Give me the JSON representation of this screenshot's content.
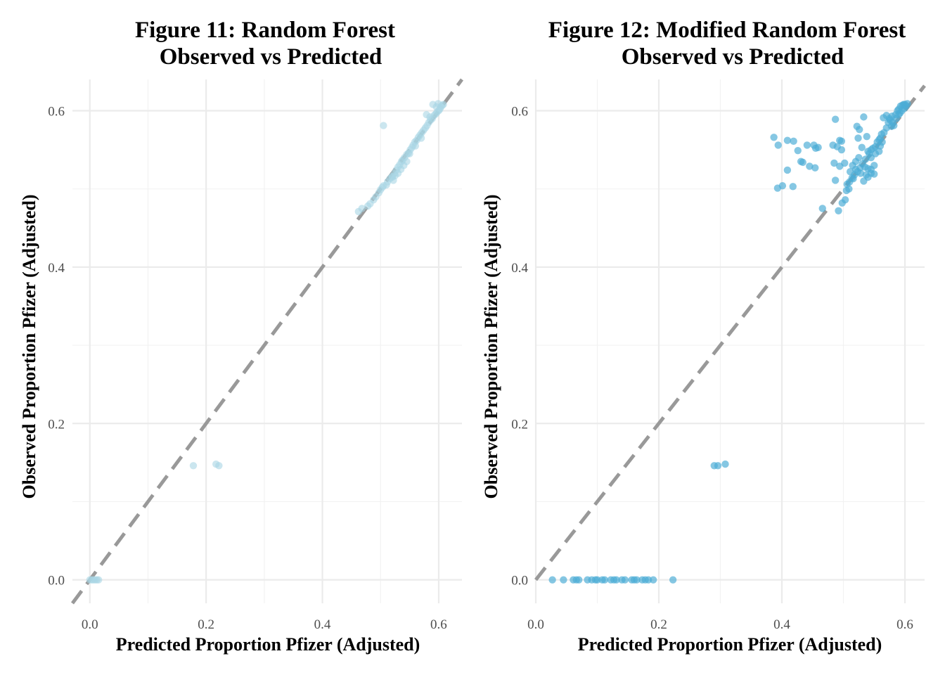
{
  "chart_data": [
    {
      "type": "scatter",
      "title": "Figure 11: Random Forest",
      "subtitle": "Observed vs Predicted",
      "xlabel": "Predicted Proportion Pfizer (Adjusted)",
      "ylabel": "Observed Proportion Pfizer (Adjusted)",
      "xlim": [
        -0.03,
        0.64
      ],
      "ylim": [
        -0.03,
        0.64
      ],
      "x_ticks": [
        "0.0",
        "0.2",
        "0.4",
        "0.6"
      ],
      "y_ticks": [
        "0.0",
        "0.2",
        "0.4",
        "0.6"
      ],
      "grid": true,
      "reference_line": "y = x (dashed)",
      "point_color": "#a9d6e5",
      "line_color": "#999999",
      "points": [
        [
          0.0,
          0.0
        ],
        [
          0.003,
          0.0
        ],
        [
          0.006,
          0.0
        ],
        [
          0.009,
          0.0
        ],
        [
          0.012,
          0.0
        ],
        [
          0.015,
          0.0
        ],
        [
          0.178,
          0.146
        ],
        [
          0.217,
          0.148
        ],
        [
          0.222,
          0.146
        ],
        [
          0.505,
          0.581
        ],
        [
          0.462,
          0.471
        ],
        [
          0.468,
          0.475
        ],
        [
          0.478,
          0.478
        ],
        [
          0.482,
          0.481
        ],
        [
          0.488,
          0.486
        ],
        [
          0.492,
          0.49
        ],
        [
          0.497,
          0.495
        ],
        [
          0.5,
          0.499
        ],
        [
          0.503,
          0.502
        ],
        [
          0.505,
          0.504
        ],
        [
          0.51,
          0.505
        ],
        [
          0.512,
          0.509
        ],
        [
          0.516,
          0.513
        ],
        [
          0.52,
          0.516
        ],
        [
          0.522,
          0.511
        ],
        [
          0.524,
          0.52
        ],
        [
          0.527,
          0.524
        ],
        [
          0.53,
          0.528
        ],
        [
          0.533,
          0.531
        ],
        [
          0.536,
          0.535
        ],
        [
          0.538,
          0.537
        ],
        [
          0.541,
          0.54
        ],
        [
          0.545,
          0.544
        ],
        [
          0.548,
          0.546
        ],
        [
          0.551,
          0.55
        ],
        [
          0.554,
          0.553
        ],
        [
          0.556,
          0.556
        ],
        [
          0.559,
          0.56
        ],
        [
          0.562,
          0.562
        ],
        [
          0.565,
          0.566
        ],
        [
          0.568,
          0.569
        ],
        [
          0.571,
          0.572
        ],
        [
          0.574,
          0.575
        ],
        [
          0.577,
          0.578
        ],
        [
          0.58,
          0.581
        ],
        [
          0.583,
          0.585
        ],
        [
          0.586,
          0.588
        ],
        [
          0.589,
          0.59
        ],
        [
          0.592,
          0.594
        ],
        [
          0.595,
          0.596
        ],
        [
          0.597,
          0.598
        ],
        [
          0.6,
          0.6
        ],
        [
          0.602,
          0.602
        ],
        [
          0.604,
          0.605
        ],
        [
          0.606,
          0.607
        ],
        [
          0.608,
          0.608
        ],
        [
          0.599,
          0.609
        ],
        [
          0.59,
          0.608
        ],
        [
          0.596,
          0.605
        ],
        [
          0.579,
          0.595
        ],
        [
          0.585,
          0.592
        ],
        [
          0.52,
          0.515
        ],
        [
          0.53,
          0.52
        ],
        [
          0.54,
          0.53
        ],
        [
          0.55,
          0.545
        ],
        [
          0.56,
          0.555
        ],
        [
          0.57,
          0.565
        ],
        [
          0.545,
          0.535
        ],
        [
          0.535,
          0.525
        ],
        [
          0.525,
          0.517
        ]
      ]
    },
    {
      "type": "scatter",
      "title": "Figure 12: Modified Random Forest",
      "subtitle": "Observed vs Predicted",
      "xlabel": "Predicted Proportion Pfizer (Adjusted)",
      "ylabel": "Observed Proportion Pfizer (Adjusted)",
      "xlim": [
        0.0,
        0.632
      ],
      "ylim": [
        -0.03,
        0.64
      ],
      "x_ticks": [
        "0.0",
        "0.2",
        "0.4",
        "0.6"
      ],
      "y_ticks": [
        "0.0",
        "0.2",
        "0.4",
        "0.6"
      ],
      "grid": true,
      "reference_line": "y = x (dashed)",
      "point_color": "#4badd6",
      "line_color": "#999999",
      "points": [
        [
          0.027,
          0.0
        ],
        [
          0.045,
          0.0
        ],
        [
          0.061,
          0.0
        ],
        [
          0.066,
          0.0
        ],
        [
          0.07,
          0.0
        ],
        [
          0.084,
          0.0
        ],
        [
          0.091,
          0.0
        ],
        [
          0.097,
          0.0
        ],
        [
          0.1,
          0.0
        ],
        [
          0.108,
          0.0
        ],
        [
          0.112,
          0.0
        ],
        [
          0.122,
          0.0
        ],
        [
          0.127,
          0.0
        ],
        [
          0.131,
          0.0
        ],
        [
          0.14,
          0.0
        ],
        [
          0.145,
          0.0
        ],
        [
          0.156,
          0.0
        ],
        [
          0.16,
          0.0
        ],
        [
          0.164,
          0.0
        ],
        [
          0.173,
          0.0
        ],
        [
          0.178,
          0.0
        ],
        [
          0.183,
          0.0
        ],
        [
          0.191,
          0.0
        ],
        [
          0.223,
          0.0
        ],
        [
          0.29,
          0.146
        ],
        [
          0.296,
          0.146
        ],
        [
          0.308,
          0.148
        ],
        [
          0.387,
          0.566
        ],
        [
          0.394,
          0.556
        ],
        [
          0.409,
          0.562
        ],
        [
          0.419,
          0.561
        ],
        [
          0.426,
          0.549
        ],
        [
          0.441,
          0.556
        ],
        [
          0.452,
          0.556
        ],
        [
          0.455,
          0.552
        ],
        [
          0.459,
          0.553
        ],
        [
          0.393,
          0.501
        ],
        [
          0.401,
          0.504
        ],
        [
          0.418,
          0.503
        ],
        [
          0.409,
          0.524
        ],
        [
          0.431,
          0.535
        ],
        [
          0.434,
          0.534
        ],
        [
          0.445,
          0.529
        ],
        [
          0.454,
          0.527
        ],
        [
          0.466,
          0.475
        ],
        [
          0.483,
          0.556
        ],
        [
          0.487,
          0.589
        ],
        [
          0.49,
          0.554
        ],
        [
          0.494,
          0.562
        ],
        [
          0.497,
          0.561
        ],
        [
          0.497,
          0.55
        ],
        [
          0.485,
          0.533
        ],
        [
          0.494,
          0.529
        ],
        [
          0.487,
          0.511
        ],
        [
          0.492,
          0.472
        ],
        [
          0.498,
          0.482
        ],
        [
          0.503,
          0.486
        ],
        [
          0.505,
          0.498
        ],
        [
          0.509,
          0.5
        ],
        [
          0.516,
          0.513
        ],
        [
          0.52,
          0.525
        ],
        [
          0.511,
          0.522
        ],
        [
          0.502,
          0.533
        ],
        [
          0.522,
          0.58
        ],
        [
          0.526,
          0.576
        ],
        [
          0.524,
          0.565
        ],
        [
          0.533,
          0.592
        ],
        [
          0.538,
          0.567
        ],
        [
          0.53,
          0.553
        ],
        [
          0.54,
          0.548
        ],
        [
          0.528,
          0.52
        ],
        [
          0.533,
          0.51
        ],
        [
          0.54,
          0.515
        ],
        [
          0.545,
          0.52
        ],
        [
          0.55,
          0.519
        ],
        [
          0.535,
          0.528
        ],
        [
          0.545,
          0.54
        ],
        [
          0.552,
          0.554
        ],
        [
          0.558,
          0.563
        ],
        [
          0.562,
          0.57
        ],
        [
          0.565,
          0.591
        ],
        [
          0.57,
          0.594
        ],
        [
          0.573,
          0.585
        ],
        [
          0.576,
          0.588
        ],
        [
          0.579,
          0.593
        ],
        [
          0.582,
          0.581
        ],
        [
          0.585,
          0.595
        ],
        [
          0.588,
          0.6
        ],
        [
          0.59,
          0.602
        ],
        [
          0.593,
          0.606
        ],
        [
          0.596,
          0.607
        ],
        [
          0.598,
          0.608
        ],
        [
          0.6,
          0.608
        ],
        [
          0.602,
          0.606
        ],
        [
          0.595,
          0.6
        ],
        [
          0.586,
          0.59
        ],
        [
          0.578,
          0.58
        ],
        [
          0.57,
          0.578
        ],
        [
          0.566,
          0.572
        ],
        [
          0.56,
          0.565
        ],
        [
          0.555,
          0.56
        ],
        [
          0.548,
          0.552
        ],
        [
          0.542,
          0.545
        ],
        [
          0.536,
          0.538
        ],
        [
          0.531,
          0.532
        ],
        [
          0.527,
          0.527
        ],
        [
          0.523,
          0.522
        ],
        [
          0.518,
          0.518
        ],
        [
          0.514,
          0.514
        ],
        [
          0.51,
          0.509
        ],
        [
          0.506,
          0.506
        ],
        [
          0.515,
          0.53
        ],
        [
          0.52,
          0.535
        ],
        [
          0.525,
          0.54
        ],
        [
          0.545,
          0.55
        ],
        [
          0.552,
          0.545
        ],
        [
          0.56,
          0.555
        ],
        [
          0.575,
          0.59
        ],
        [
          0.58,
          0.585
        ],
        [
          0.59,
          0.595
        ],
        [
          0.599,
          0.603
        ],
        [
          0.604,
          0.609
        ],
        [
          0.592,
          0.597
        ],
        [
          0.54,
          0.526
        ],
        [
          0.537,
          0.518
        ],
        [
          0.545,
          0.525
        ],
        [
          0.55,
          0.53
        ],
        [
          0.558,
          0.548
        ],
        [
          0.563,
          0.56
        ]
      ]
    }
  ]
}
